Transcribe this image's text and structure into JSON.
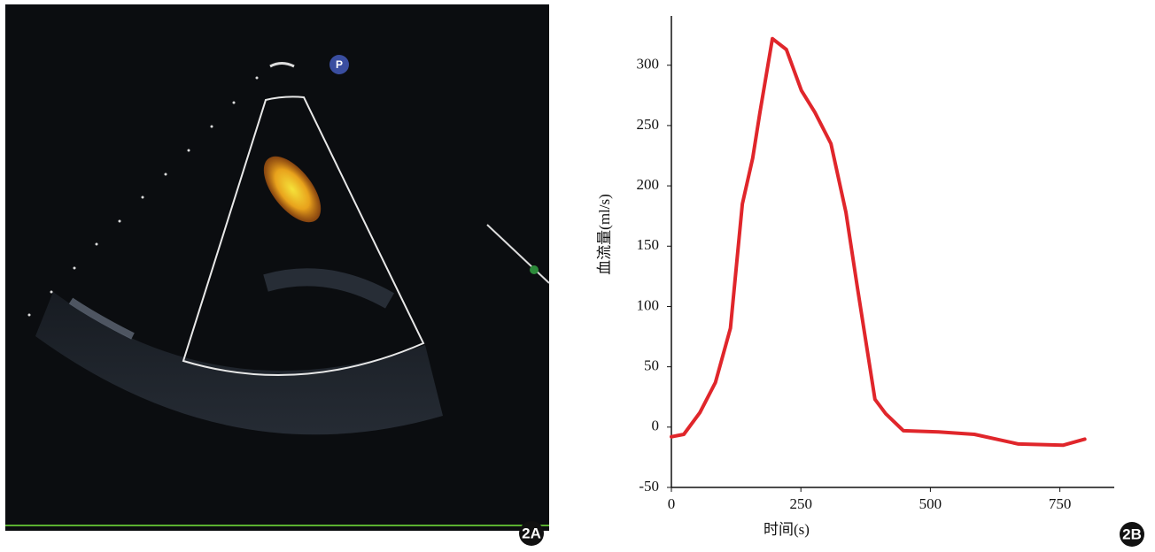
{
  "panels": {
    "left_label": "2A",
    "right_label": "2B",
    "probe_icon": "P"
  },
  "chart_data": {
    "type": "line",
    "x_label": "时间(s)",
    "y_label": "血流量(ml/s)",
    "x": [
      0,
      24,
      55,
      85,
      114,
      137,
      157,
      171,
      195,
      222,
      251,
      277,
      308,
      337,
      359,
      393,
      414,
      448,
      516,
      585,
      670,
      756,
      798
    ],
    "series": [
      {
        "color": "#e0262b",
        "values": [
          -8,
          -6,
          12,
          37,
          82,
          185,
          223,
          261,
          322,
          313,
          279,
          261,
          235,
          178,
          116,
          23,
          11,
          -3,
          -4,
          -6,
          -14,
          -15,
          -10
        ]
      }
    ],
    "xlim": [
      0,
      855
    ],
    "ylim": [
      -50,
      335
    ],
    "xticks": [
      0,
      250,
      500,
      750
    ],
    "yticks": [
      -50,
      0,
      50,
      100,
      150,
      200,
      250,
      300
    ]
  }
}
